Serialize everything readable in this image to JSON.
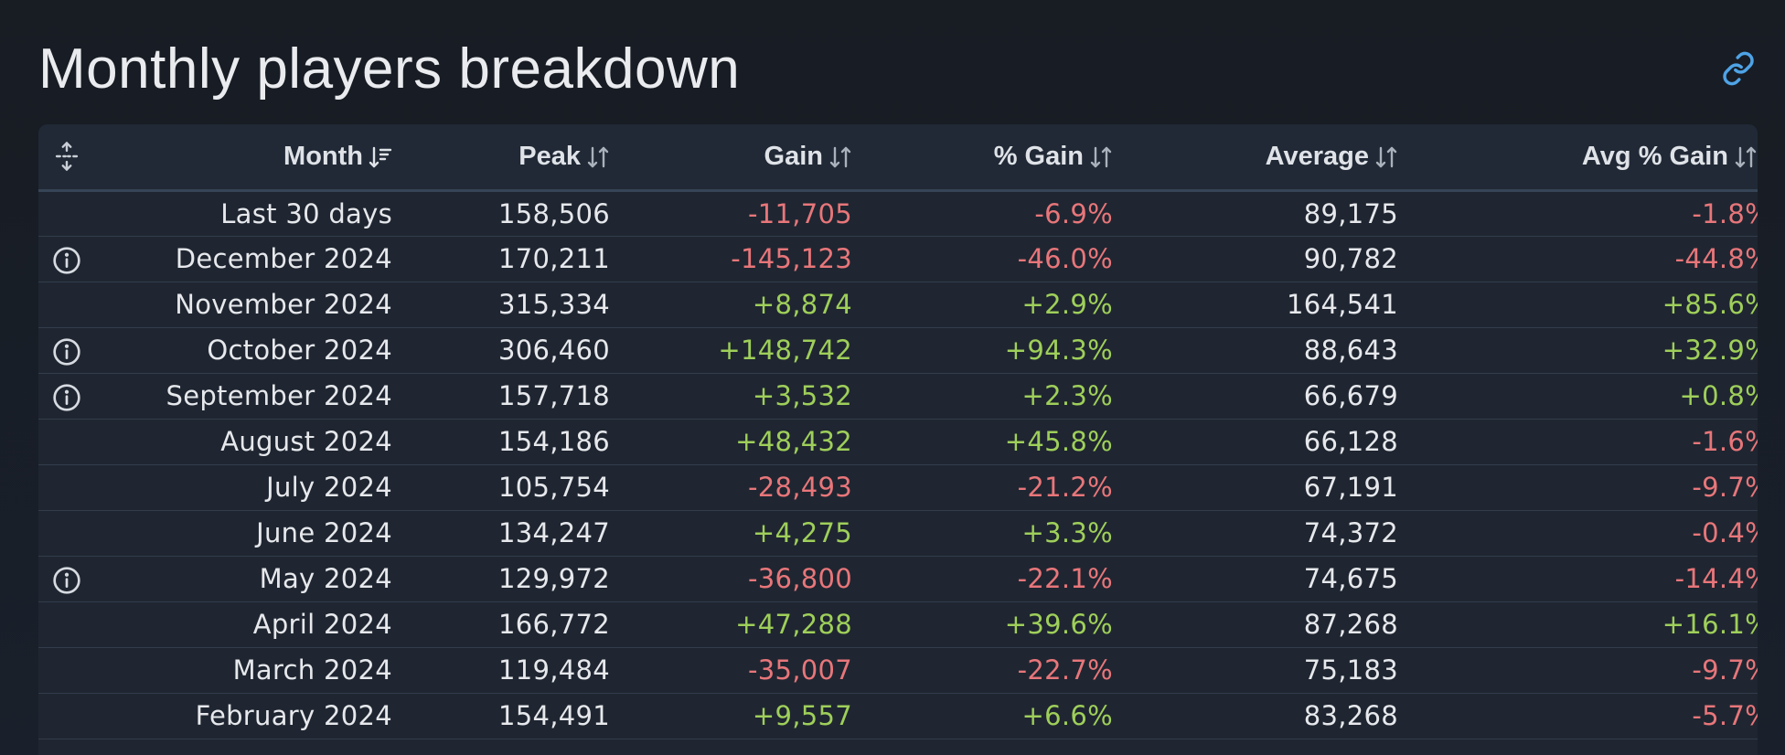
{
  "page": {
    "title": "Monthly players breakdown",
    "link_icon": "link-icon"
  },
  "colors": {
    "background": "#171b23",
    "table_bg": "#1f2631",
    "negative": "#e8767a",
    "positive": "#9fcf5a",
    "link": "#4ea3e6"
  },
  "table": {
    "columns": [
      {
        "key": "month",
        "label": "Month",
        "sort_icon": "sort-descending-icon"
      },
      {
        "key": "peak",
        "label": "Peak",
        "sort_icon": "sort-icon"
      },
      {
        "key": "gain",
        "label": "Gain",
        "sort_icon": "sort-icon"
      },
      {
        "key": "pgain",
        "label": "% Gain",
        "sort_icon": "sort-icon"
      },
      {
        "key": "avg",
        "label": "Average",
        "sort_icon": "sort-icon"
      },
      {
        "key": "apgain",
        "label": "Avg % Gain",
        "sort_icon": "sort-icon"
      }
    ],
    "rows": [
      {
        "info": false,
        "month": "Last 30 days",
        "peak": "158,506",
        "gain": "-11,705",
        "pgain": "-6.9%",
        "avg": "89,175",
        "apgain": "-1.8%"
      },
      {
        "info": true,
        "month": "December 2024",
        "peak": "170,211",
        "gain": "-145,123",
        "pgain": "-46.0%",
        "avg": "90,782",
        "apgain": "-44.8%"
      },
      {
        "info": false,
        "month": "November 2024",
        "peak": "315,334",
        "gain": "+8,874",
        "pgain": "+2.9%",
        "avg": "164,541",
        "apgain": "+85.6%"
      },
      {
        "info": true,
        "month": "October 2024",
        "peak": "306,460",
        "gain": "+148,742",
        "pgain": "+94.3%",
        "avg": "88,643",
        "apgain": "+32.9%"
      },
      {
        "info": true,
        "month": "September 2024",
        "peak": "157,718",
        "gain": "+3,532",
        "pgain": "+2.3%",
        "avg": "66,679",
        "apgain": "+0.8%"
      },
      {
        "info": false,
        "month": "August 2024",
        "peak": "154,186",
        "gain": "+48,432",
        "pgain": "+45.8%",
        "avg": "66,128",
        "apgain": "-1.6%"
      },
      {
        "info": false,
        "month": "July 2024",
        "peak": "105,754",
        "gain": "-28,493",
        "pgain": "-21.2%",
        "avg": "67,191",
        "apgain": "-9.7%"
      },
      {
        "info": false,
        "month": "June 2024",
        "peak": "134,247",
        "gain": "+4,275",
        "pgain": "+3.3%",
        "avg": "74,372",
        "apgain": "-0.4%"
      },
      {
        "info": true,
        "month": "May 2024",
        "peak": "129,972",
        "gain": "-36,800",
        "pgain": "-22.1%",
        "avg": "74,675",
        "apgain": "-14.4%"
      },
      {
        "info": false,
        "month": "April 2024",
        "peak": "166,772",
        "gain": "+47,288",
        "pgain": "+39.6%",
        "avg": "87,268",
        "apgain": "+16.1%"
      },
      {
        "info": false,
        "month": "March 2024",
        "peak": "119,484",
        "gain": "-35,007",
        "pgain": "-22.7%",
        "avg": "75,183",
        "apgain": "-9.7%"
      },
      {
        "info": false,
        "month": "February 2024",
        "peak": "154,491",
        "gain": "+9,557",
        "pgain": "+6.6%",
        "avg": "83,268",
        "apgain": "-5.7%"
      }
    ]
  }
}
